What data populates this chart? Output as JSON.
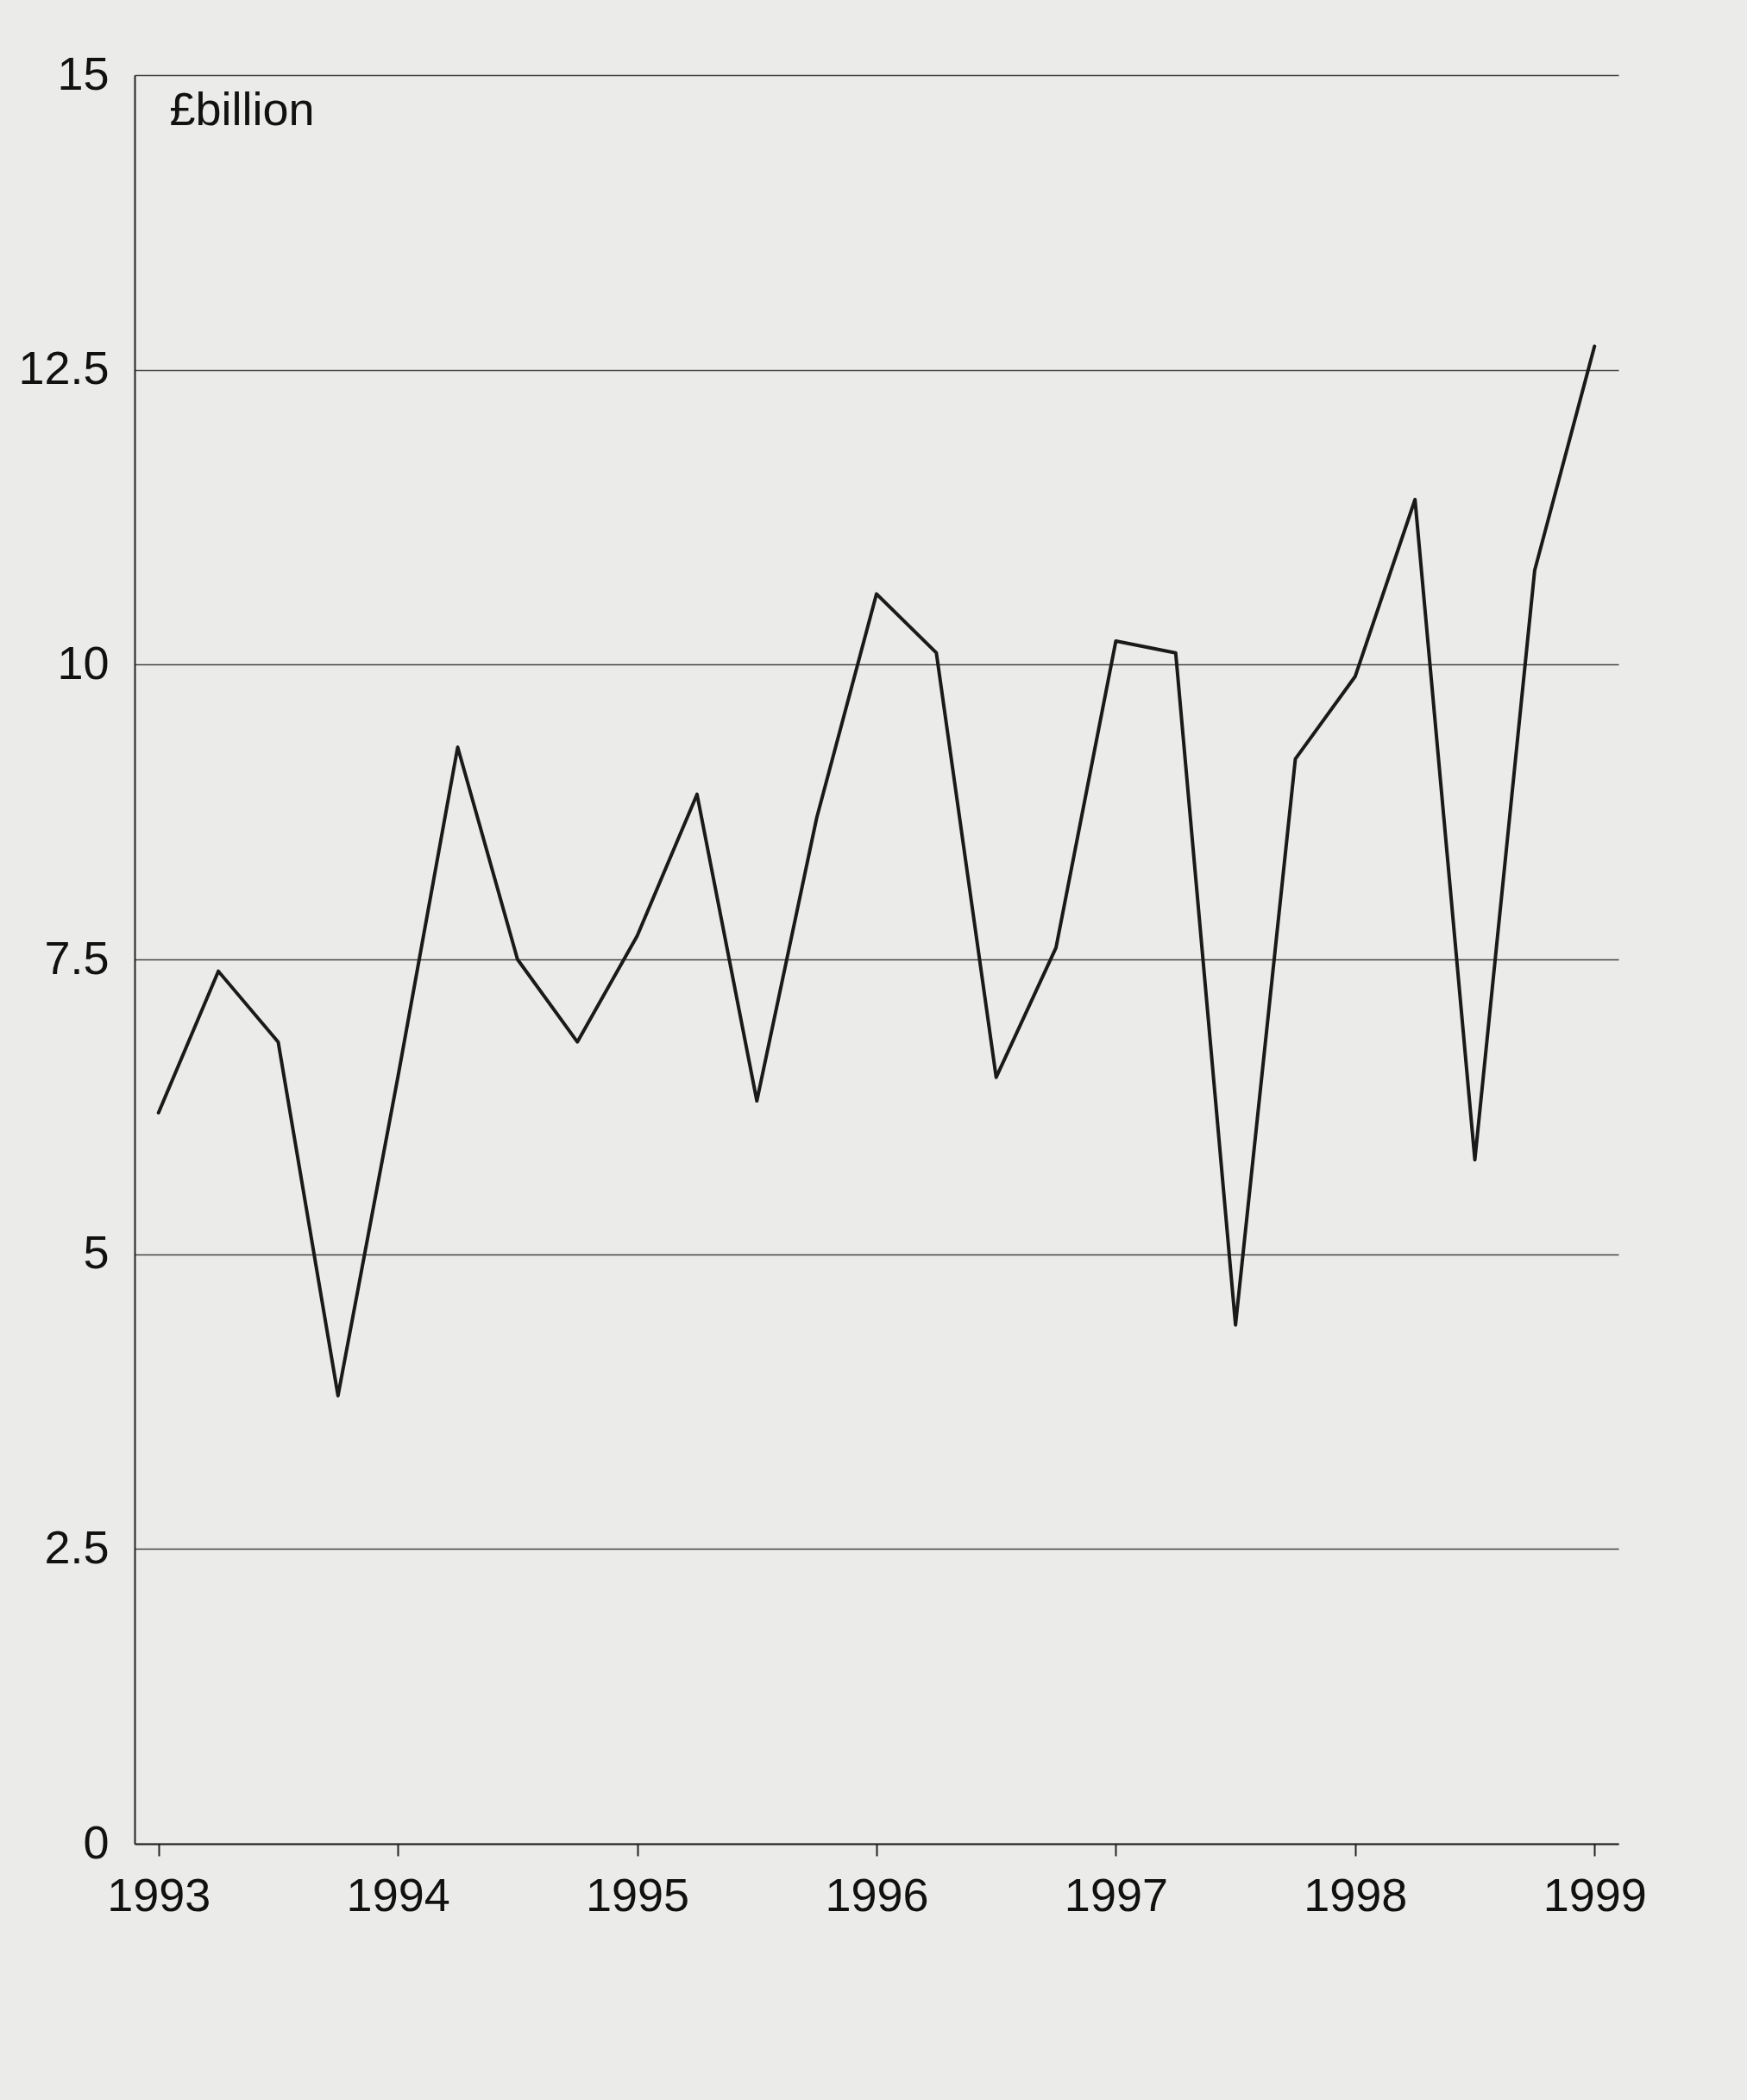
{
  "chart_data": {
    "type": "line",
    "ylabel": "£billion",
    "x": [
      1993,
      1993.25,
      1993.5,
      1993.75,
      1994,
      1994.25,
      1994.5,
      1994.75,
      1995,
      1995.25,
      1995.5,
      1995.75,
      1996,
      1996.25,
      1996.5,
      1996.75,
      1997,
      1997.25,
      1997.5,
      1997.75,
      1998,
      1998.25,
      1998.5,
      1998.75,
      1999
    ],
    "series": [
      {
        "color": "#1a1a1a",
        "values": [
          6.2,
          7.4,
          6.8,
          3.8,
          6.5,
          9.3,
          7.5,
          6.8,
          7.7,
          8.9,
          6.3,
          8.7,
          10.6,
          10.1,
          6.5,
          7.6,
          10.2,
          10.1,
          4.4,
          9.2,
          9.9,
          11.4,
          5.8,
          10.8,
          12.7
        ]
      }
    ],
    "xlim": [
      1992.9,
      1999.1
    ],
    "xticks": [
      1993,
      1994,
      1995,
      1996,
      1997,
      1998,
      1999
    ],
    "ylim": [
      0,
      15
    ],
    "yticks": [
      0,
      2.5,
      5,
      7.5,
      10,
      12.5,
      15
    ],
    "grid": "y",
    "marker": "none",
    "line_style": "solid"
  }
}
